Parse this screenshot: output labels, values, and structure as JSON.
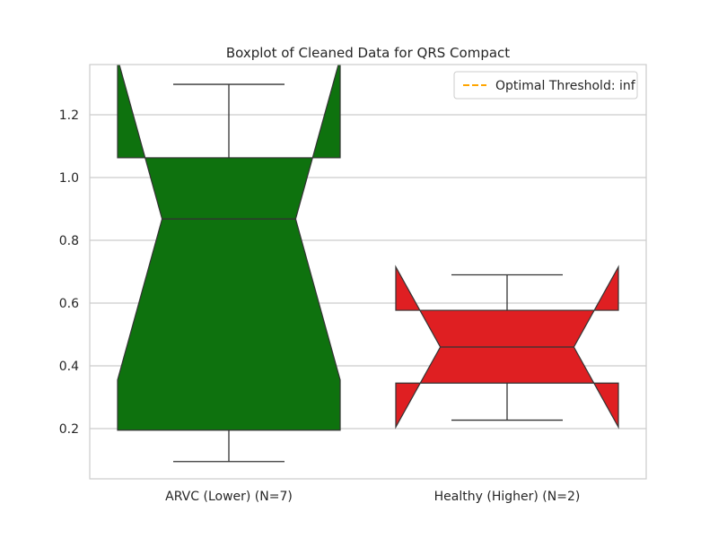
{
  "chart_data": {
    "type": "boxplot",
    "title": "Boxplot of Cleaned Data for QRS Compact",
    "xlabel": "",
    "ylabel": "",
    "ylim": [
      0.04,
      1.36
    ],
    "yticks": [
      0.2,
      0.4,
      0.6,
      0.8,
      1.0,
      1.2
    ],
    "ytick_labels": [
      "0.2",
      "0.4",
      "0.6",
      "0.8",
      "1.0",
      "1.2"
    ],
    "grid": true,
    "legend": {
      "position": "top-right",
      "entries": [
        {
          "label": "Optimal Threshold: inf",
          "color": "#ffa500",
          "style": "dashed"
        }
      ]
    },
    "boxes": [
      {
        "category": "ARVC (Lower) (N=7)",
        "color": "#0e720e",
        "whisker_low": 0.095,
        "q1": 0.195,
        "median": 0.868,
        "q3": 1.063,
        "whisker_high": 1.297,
        "notch_low": 0.355,
        "notch_high": 1.38
      },
      {
        "category": "Healthy (Higher) (N=2)",
        "color": "#df1f22",
        "whisker_low": 0.227,
        "q1": 0.345,
        "median": 0.46,
        "q3": 0.577,
        "whisker_high": 0.69,
        "notch_low": 0.205,
        "notch_high": 0.715
      }
    ]
  }
}
